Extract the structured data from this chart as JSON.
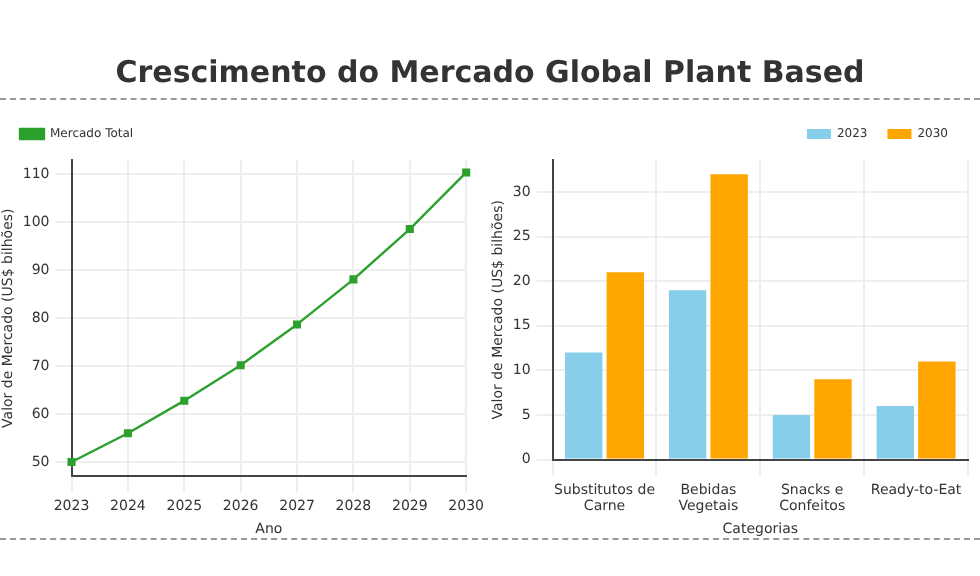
{
  "chart_data": [
    {
      "type": "line",
      "title": "Crescimento do Mercado Global Plant Based",
      "xlabel": "Ano",
      "ylabel": "Valor de Mercado (US$ bilhões)",
      "categories": [
        "2023",
        "2024",
        "2025",
        "2026",
        "2027",
        "2028",
        "2029",
        "2030"
      ],
      "series": [
        {
          "name": "Mercado Total",
          "color": "#2ca02c",
          "values": [
            50,
            56,
            62.8,
            70.2,
            78.7,
            88.1,
            98.6,
            110.4
          ]
        }
      ],
      "ylim": [
        47,
        113
      ],
      "yticks": [
        50,
        60,
        70,
        80,
        90,
        100,
        110
      ],
      "grid": true,
      "legend": "top left",
      "marker": "square",
      "line_style": "solid"
    },
    {
      "type": "bar",
      "xlabel": "Categorias",
      "ylabel": "Valor de Mercado (US$ bilhões)",
      "categories": [
        "Substitutos de Carne",
        "Bebidas Vegetais",
        "Snacks e Confeitos",
        "Ready-to-Eat"
      ],
      "series": [
        {
          "name": "2023",
          "color": "#87ceeb",
          "values": [
            12,
            19,
            5,
            6
          ]
        },
        {
          "name": "2030",
          "color": "#ffa500",
          "values": [
            21,
            32,
            9,
            11
          ]
        }
      ],
      "ylim": [
        0,
        33.6
      ],
      "yticks": [
        0,
        5,
        10,
        15,
        20,
        25,
        30
      ],
      "grid": true,
      "legend": "top right"
    }
  ]
}
